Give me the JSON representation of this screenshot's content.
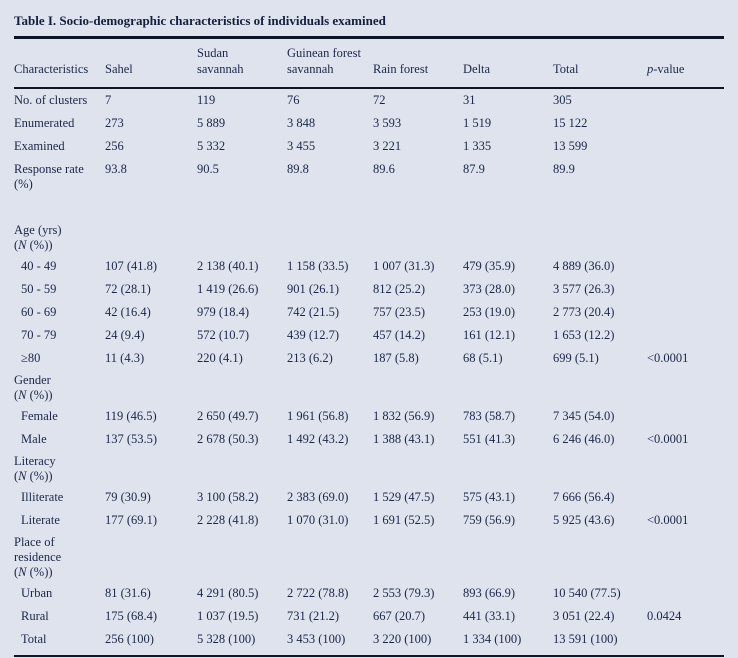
{
  "title": "Table I. Socio-demographic characteristics of individuals examined",
  "table": {
    "columns": [
      "Characteristics",
      "Sahel",
      "Sudan\nsavannah",
      "Guinean forest\nsavannah",
      "Rain forest",
      "Delta",
      "Total",
      "*p*-value"
    ],
    "rows": [
      {
        "type": "data",
        "indent": false,
        "label": "No. of clusters",
        "cells": [
          "7",
          "119",
          "76",
          "72",
          "31",
          "305",
          ""
        ]
      },
      {
        "type": "data",
        "indent": false,
        "label": "Enumerated",
        "cells": [
          "273",
          "5 889",
          "3 848",
          "3 593",
          "1 519",
          "15 122",
          ""
        ]
      },
      {
        "type": "data",
        "indent": false,
        "label": "Examined",
        "cells": [
          "256",
          "5 332",
          "3 455",
          "3 221",
          "1 335",
          "13 599",
          ""
        ]
      },
      {
        "type": "data",
        "indent": false,
        "label": "Response rate\n(%)",
        "cells": [
          "93.8",
          "90.5",
          "89.8",
          "89.6",
          "87.9",
          "89.9",
          ""
        ]
      },
      {
        "type": "spacer"
      },
      {
        "type": "section",
        "label": "Age (yrs)\n(*N* (%))"
      },
      {
        "type": "data",
        "indent": true,
        "label": "40 - 49",
        "cells": [
          "107 (41.8)",
          "2 138 (40.1)",
          "1 158 (33.5)",
          "1 007 (31.3)",
          "479 (35.9)",
          "4 889 (36.0)",
          ""
        ]
      },
      {
        "type": "data",
        "indent": true,
        "label": "50 - 59",
        "cells": [
          "72 (28.1)",
          "1 419 (26.6)",
          "901 (26.1)",
          "812 (25.2)",
          "373 (28.0)",
          "3 577 (26.3)",
          ""
        ]
      },
      {
        "type": "data",
        "indent": true,
        "label": "60 - 69",
        "cells": [
          "42 (16.4)",
          "979 (18.4)",
          "742 (21.5)",
          "757 (23.5)",
          "253 (19.0)",
          "2 773 (20.4)",
          ""
        ]
      },
      {
        "type": "data",
        "indent": true,
        "label": "70 - 79",
        "cells": [
          "24 (9.4)",
          "572 (10.7)",
          "439 (12.7)",
          "457 (14.2)",
          "161 (12.1)",
          "1 653 (12.2)",
          ""
        ]
      },
      {
        "type": "data",
        "indent": true,
        "label": "≥80",
        "cells": [
          "11 (4.3)",
          "220 (4.1)",
          "213 (6.2)",
          "187 (5.8)",
          "68 (5.1)",
          "699 (5.1)",
          "<0.0001"
        ]
      },
      {
        "type": "section",
        "label": "Gender\n(*N* (%))"
      },
      {
        "type": "data",
        "indent": true,
        "label": "Female",
        "cells": [
          "119 (46.5)",
          "2 650 (49.7)",
          "1 961 (56.8)",
          "1 832 (56.9)",
          "783 (58.7)",
          "7 345 (54.0)",
          ""
        ]
      },
      {
        "type": "data",
        "indent": true,
        "label": "Male",
        "cells": [
          "137 (53.5)",
          "2 678 (50.3)",
          "1 492 (43.2)",
          "1 388 (43.1)",
          "551 (41.3)",
          "6 246 (46.0)",
          "<0.0001"
        ]
      },
      {
        "type": "section",
        "label": "Literacy\n(*N* (%))"
      },
      {
        "type": "data",
        "indent": true,
        "label": "Illiterate",
        "cells": [
          "79 (30.9)",
          "3 100 (58.2)",
          "2 383 (69.0)",
          "1 529 (47.5)",
          "575 (43.1)",
          "7 666 (56.4)",
          ""
        ]
      },
      {
        "type": "data",
        "indent": true,
        "label": "Literate",
        "cells": [
          "177 (69.1)",
          "2 228 (41.8)",
          "1 070 (31.0)",
          "1 691 (52.5)",
          "759 (56.9)",
          "5 925 (43.6)",
          "<0.0001"
        ]
      },
      {
        "type": "section",
        "label": "Place of\nresidence\n(*N* (%))"
      },
      {
        "type": "data",
        "indent": true,
        "label": "Urban",
        "cells": [
          "81 (31.6)",
          "4 291 (80.5)",
          "2 722 (78.8)",
          "2 553 (79.3)",
          "893 (66.9)",
          "10 540 (77.5)",
          ""
        ]
      },
      {
        "type": "data",
        "indent": true,
        "label": "Rural",
        "cells": [
          "175 (68.4)",
          "1 037 (19.5)",
          "731 (21.2)",
          "667 (20.7)",
          "441 (33.1)",
          "3 051 (22.4)",
          "0.0424"
        ]
      },
      {
        "type": "data",
        "indent": true,
        "label": "Total",
        "cells": [
          "256 (100)",
          "5 328 (100)",
          "3 453 (100)",
          "3 220 (100)",
          "1 334 (100)",
          "13 591 (100)",
          ""
        ]
      }
    ]
  },
  "colors": {
    "background": "#dee3ee",
    "text": "#1c2747",
    "rule": "#0d1526"
  }
}
